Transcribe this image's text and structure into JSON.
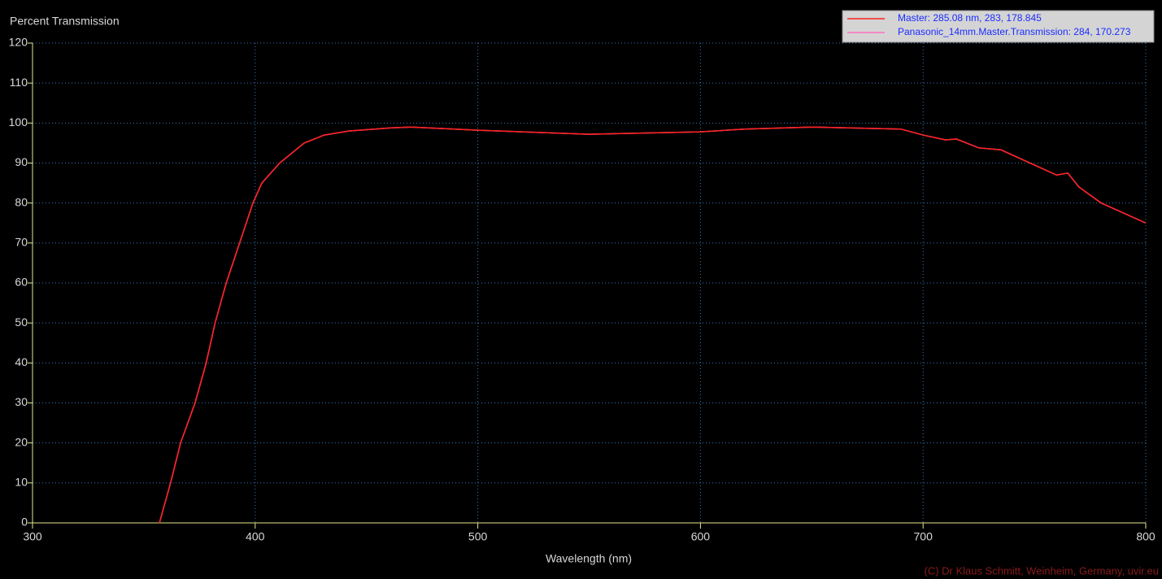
{
  "chart_data": {
    "type": "line",
    "title": "Percent Transmission",
    "x_label": "Wavelength (nm)",
    "credit": "(C) Dr Klaus Schmitt, Weinheim, Germany, uvir.eu",
    "x": [
      357,
      362,
      366.5,
      373,
      378,
      382,
      387,
      393,
      399,
      403,
      411,
      422,
      431,
      442,
      461,
      470,
      500,
      550,
      600,
      620,
      650,
      690,
      700,
      710,
      715,
      725,
      735,
      750,
      760,
      765,
      770,
      780,
      790,
      800
    ],
    "series": [
      {
        "name": "Master",
        "readout": ": 285.08 nm, 283, 178.845",
        "color": "#ff2020",
        "values": [
          0,
          10,
          20,
          30,
          40,
          50,
          60,
          70,
          80,
          85,
          90,
          95,
          97,
          98,
          98.8,
          99,
          98.2,
          97.2,
          97.8,
          98.5,
          99,
          98.5,
          97,
          95.8,
          96,
          93.8,
          93.3,
          89.5,
          87,
          87.5,
          84,
          80,
          77.5,
          75
        ]
      },
      {
        "name": "Panasonic_14mm.Master.Transmission",
        "readout": ": 284, 170.273",
        "color": "#ff70c0",
        "values": [
          0,
          10,
          20,
          30,
          40,
          50,
          60,
          70,
          80,
          85,
          90,
          95,
          97,
          98,
          98.8,
          99,
          98.2,
          97.2,
          97.8,
          98.5,
          99,
          98.5,
          97,
          95.8,
          96,
          93.8,
          93.3,
          89.5,
          87,
          87.5,
          84,
          80,
          77.5,
          75
        ]
      }
    ],
    "xlim": [
      300,
      800
    ],
    "xticks": [
      300,
      400,
      500,
      600,
      700,
      800
    ],
    "ylim": [
      0,
      120
    ],
    "yticks": [
      0,
      10,
      20,
      30,
      40,
      50,
      60,
      70,
      80,
      90,
      100,
      110,
      120
    ],
    "grid": true,
    "legend": "top-right"
  }
}
